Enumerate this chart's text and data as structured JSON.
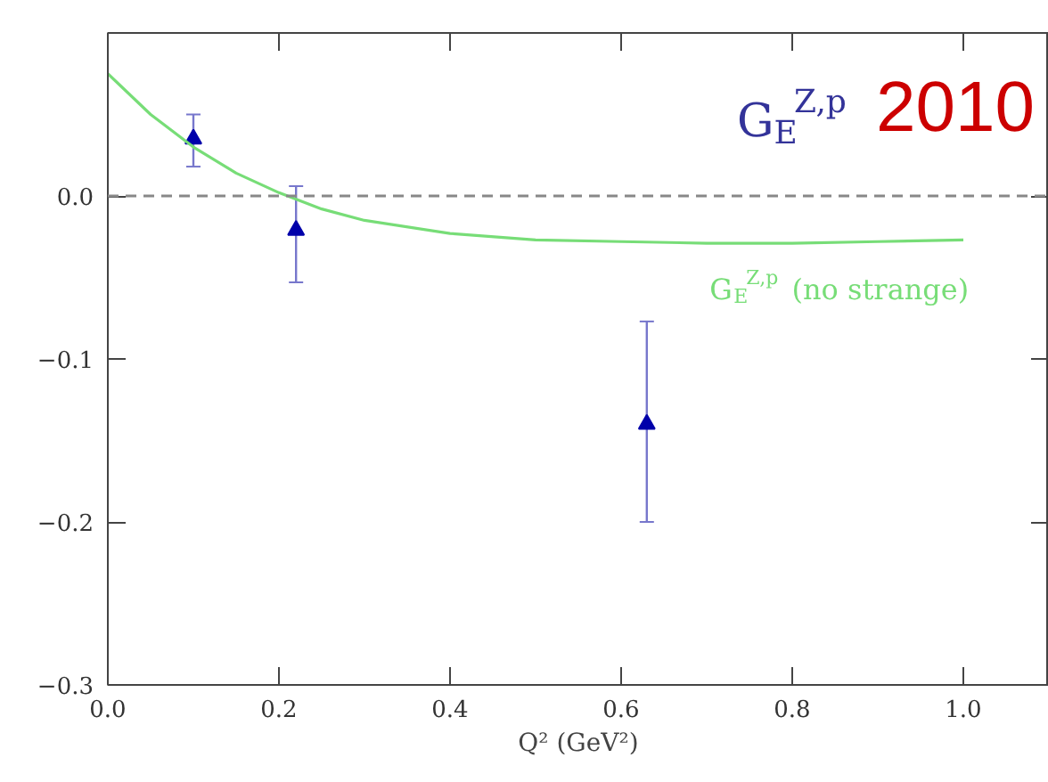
{
  "chart_data": {
    "type": "scatter",
    "title": "G$_{E}$$^{Z,p}$",
    "xlabel": "Q² (GeV²)",
    "annotations": [
      "2010"
    ],
    "xlim": [
      0,
      1.1
    ],
    "ylim": [
      -0.3,
      0.1
    ],
    "xticks": [
      {
        "value": 0,
        "label": "0.0"
      },
      0.2,
      0.4,
      0.6,
      0.8,
      {
        "value": 1,
        "label": "1.0"
      }
    ],
    "yticks": [
      {
        "value": -0.3,
        "label": "−0.3"
      },
      {
        "value": -0.2,
        "label": "−0.2"
      },
      {
        "value": -0.1,
        "label": "−0.1"
      },
      {
        "value": 0,
        "label": "0.0"
      }
    ],
    "ref_lines": [
      {
        "axis": "y",
        "value": 0,
        "color": "#888888",
        "line_style": "dashed"
      }
    ],
    "marker": "triangle",
    "legend": false,
    "grid": false,
    "series": [
      {
        "color": "#0000aa",
        "x": [
          0.1,
          0.22,
          0.63
        ],
        "values": [
          0.035,
          -0.021,
          -0.14
        ],
        "errors": [
          [
            0.018,
            0.05
          ],
          [
            -0.053,
            0.006
          ],
          [
            -0.2,
            -0.077
          ]
        ]
      },
      {
        "type": "line",
        "name": "G$_{E}$$^{Z,p}$ (no strange)",
        "color": "#77dd77",
        "marker": "none",
        "x": [
          0,
          0.05,
          0.1,
          0.15,
          0.2,
          0.25,
          0.3,
          0.4,
          0.5,
          0.6,
          0.7,
          0.8,
          0.9,
          1.0
        ],
        "values": [
          0.075,
          0.05,
          0.03,
          0.014,
          0.002,
          -0.008,
          -0.015,
          -0.023,
          -0.027,
          -0.028,
          -0.029,
          -0.029,
          -0.028,
          -0.027
        ]
      }
    ]
  }
}
